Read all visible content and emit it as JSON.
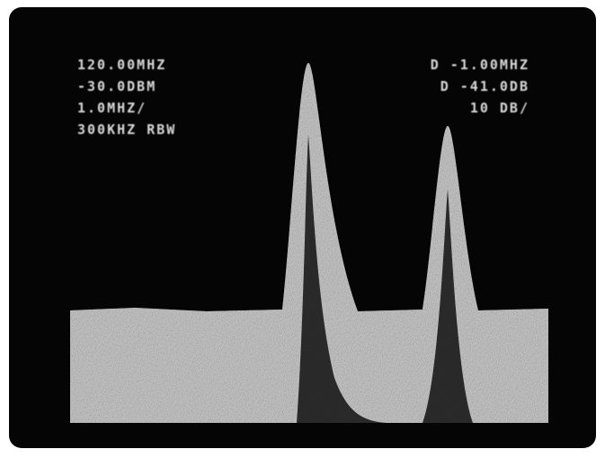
{
  "left_readout": [
    "120.00MHZ",
    "-30.0DBM",
    "1.0MHZ/",
    "300KHZ RBW"
  ],
  "right_readout": [
    "D -1.00MHZ",
    "D -41.0DB",
    "10 DB/"
  ]
}
